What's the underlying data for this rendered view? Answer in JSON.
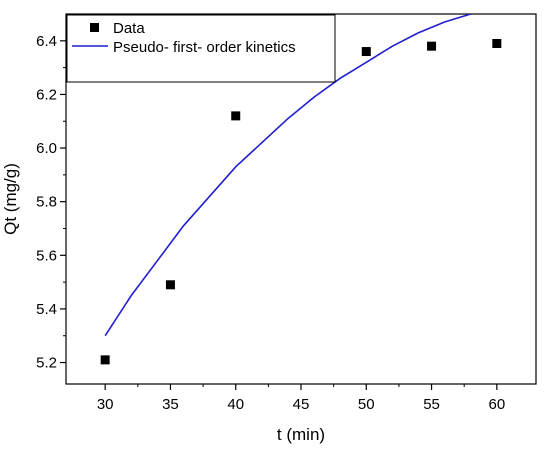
{
  "chart_data": {
    "type": "scatter",
    "xlabel": "t (min)",
    "ylabel": "Qt (mg/g)",
    "xlim": [
      27,
      63
    ],
    "ylim": [
      5.12,
      6.5
    ],
    "x_ticks": [
      30,
      35,
      40,
      45,
      50,
      55,
      60
    ],
    "x_tick_labels": [
      "30",
      "35",
      "40",
      "45",
      "50",
      "55",
      "60"
    ],
    "y_ticks": [
      5.2,
      5.4,
      5.6,
      5.8,
      6.0,
      6.2,
      6.4
    ],
    "y_tick_labels": [
      "5.2",
      "5.4",
      "5.6",
      "5.8",
      "6.0",
      "6.2",
      "6.4"
    ],
    "grid": false,
    "legend_position": "top-left",
    "series": [
      {
        "name": "Data",
        "kind": "scatter",
        "marker": "square",
        "color": "#000000",
        "x": [
          30,
          35,
          40,
          50,
          55,
          60
        ],
        "y": [
          5.21,
          5.49,
          6.12,
          6.36,
          6.38,
          6.39
        ]
      },
      {
        "name": "Pseudo- first- order kinetics",
        "kind": "line",
        "color": "#1f1fd0",
        "x": [
          30,
          32,
          34,
          36,
          38,
          40,
          42,
          44,
          46,
          48,
          50,
          52,
          54,
          56,
          58
        ],
        "y": [
          5.3,
          5.45,
          5.58,
          5.71,
          5.82,
          5.93,
          6.02,
          6.11,
          6.19,
          6.26,
          6.32,
          6.38,
          6.43,
          6.47,
          6.5
        ]
      }
    ]
  }
}
